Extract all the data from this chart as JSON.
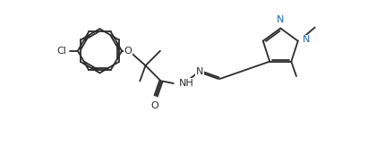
{
  "bg_color": "#ffffff",
  "line_color": "#2b2b2b",
  "bond_lw": 1.3,
  "font_size": 8.0,
  "N_color": "#1a6ab0",
  "figsize": [
    4.31,
    1.64
  ],
  "dpi": 100,
  "xlim": [
    -0.3,
    10.8
  ],
  "ylim": [
    -1.2,
    4.0
  ]
}
